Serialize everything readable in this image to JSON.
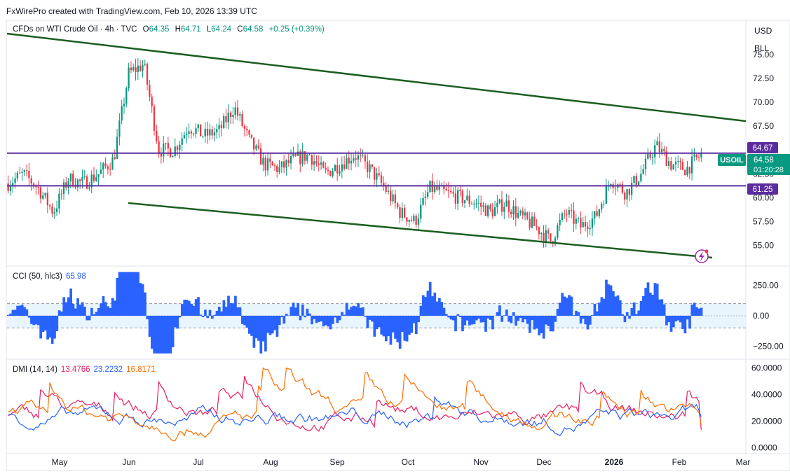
{
  "credit": "FxWirePro created with TradingView.com, Feb 10, 2026 13:39 UTC",
  "symbol_title": "CFDs on WTI Crude Oil · 4h · TVC",
  "ohlc": {
    "o_label": "O",
    "o": "64.35",
    "h_label": "H",
    "h": "64.71",
    "l_label": "L",
    "l": "64.24",
    "c_label": "C",
    "c": "64.58",
    "change": "+0.25 (+0.39%)"
  },
  "currency": "USD",
  "unit": "BLL",
  "colors": {
    "up": "#089981",
    "down": "#f23645",
    "channel": "#1b5e20",
    "hline": "#5b2c9f",
    "cci": "#2962ff",
    "dmi_plus": "#2962ff",
    "dmi_minus": "#ff6d00",
    "adx": "#e91e63"
  },
  "price_tags": {
    "symbol": "USOIL",
    "last": "64.58",
    "countdown": "01:20:28",
    "level_high": "64.67",
    "level_low": "61.25"
  },
  "horizontal_levels": [
    64.67,
    61.25
  ],
  "cci_legend": {
    "label": "CCI (50, hlc3)",
    "value": "65.98"
  },
  "dmi_legend": {
    "label": "DMI (14, 14)",
    "adx": "13.4766",
    "plus": "23.2232",
    "minus": "16.8171"
  },
  "x_labels": [
    "May",
    "Jun",
    "Jul",
    "Aug",
    "Sep",
    "Oct",
    "Nov",
    "Dec",
    "2026",
    "Feb",
    "Mar"
  ],
  "chart_data": [
    {
      "type": "line",
      "series": [
        {
          "name": "Price",
          "x": [
            "Apr 15",
            "Apr 22",
            "May 1",
            "May 8",
            "May 15",
            "May 22",
            "Jun 1",
            "Jun 8",
            "Jun 13",
            "Jun 18",
            "Jun 23",
            "Jun 30",
            "Jul 7",
            "Jul 14",
            "Jul 21",
            "Jul 28",
            "Aug 4",
            "Aug 11",
            "Aug 18",
            "Aug 25",
            "Sep 1",
            "Sep 8",
            "Sep 15",
            "Sep 22",
            "Sep 29",
            "Oct 6",
            "Oct 13",
            "Oct 20",
            "Oct 24",
            "Oct 31",
            "Nov 7",
            "Nov 14",
            "Nov 21",
            "Nov 28",
            "Dec 5",
            "Dec 12",
            "Dec 16",
            "Dec 22",
            "Dec 29",
            "Jan 5",
            "Jan 12",
            "Jan 19",
            "Jan 26",
            "Jan 29",
            "Feb 3",
            "Feb 6",
            "Feb 10"
          ],
          "values": [
            61.5,
            62.5,
            61.0,
            58.5,
            62.0,
            61.5,
            62.5,
            64.0,
            73.0,
            74.0,
            65.0,
            65.0,
            67.5,
            66.5,
            67.0,
            69.5,
            66.0,
            63.5,
            63.0,
            64.0,
            64.5,
            62.5,
            63.5,
            64.5,
            63.0,
            61.0,
            58.5,
            57.5,
            61.0,
            60.5,
            60.0,
            59.5,
            58.5,
            59.5,
            58.0,
            57.0,
            55.5,
            58.5,
            57.0,
            58.0,
            62.0,
            60.5,
            62.5,
            65.5,
            63.5,
            63.0,
            64.5
          ]
        }
      ],
      "yaxis": {
        "ticks": [
          55.0,
          57.5,
          60.0,
          62.5,
          65.0,
          67.5,
          70.0,
          72.5,
          75.0
        ]
      },
      "ylim": [
        53.0,
        78.5
      ]
    },
    {
      "type": "bar",
      "series": [
        {
          "name": "CCI (50, hlc3)",
          "current": 65.98
        }
      ],
      "yaxis": {
        "ticks": [
          -250.0,
          0.0,
          250.0
        ]
      },
      "ylim": [
        -340,
        380
      ]
    },
    {
      "type": "line",
      "series": [
        {
          "name": "ADX",
          "current": 13.4766
        },
        {
          "name": "+DI",
          "current": 23.2232
        },
        {
          "name": "-DI",
          "current": 16.8171
        }
      ],
      "yaxis": {
        "ticks": [
          0.0,
          20.0,
          40.0,
          60.0
        ]
      },
      "ylim": [
        -3,
        64
      ]
    }
  ]
}
